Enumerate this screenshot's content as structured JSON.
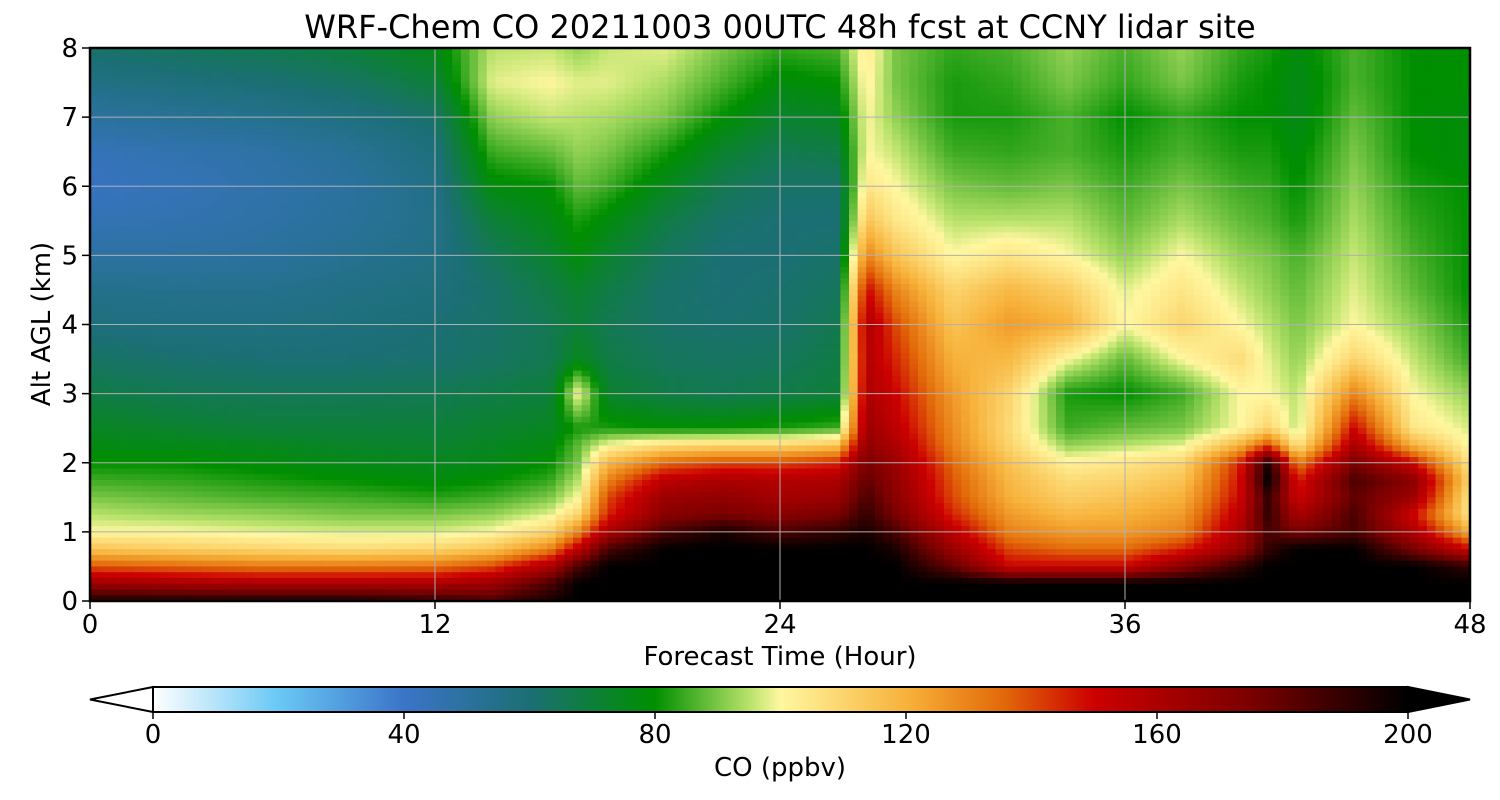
{
  "chart_data": {
    "type": "heatmap",
    "title": "WRF-Chem CO  20211003 00UTC 48h fcst at CCNY lidar site",
    "xlabel": "Forecast Time (Hour)",
    "ylabel": "Alt AGL (km)",
    "xlim": [
      0,
      48
    ],
    "ylim": [
      0,
      8
    ],
    "x_ticks": [
      "0",
      "12",
      "24",
      "36",
      "48"
    ],
    "y_ticks": [
      "0",
      "1",
      "2",
      "3",
      "4",
      "5",
      "6",
      "7",
      "8"
    ],
    "grid": true,
    "colorbar": {
      "label": "CO  (ppbv)",
      "range": [
        0,
        200
      ],
      "ticks": [
        "0",
        "40",
        "80",
        "120",
        "160",
        "200"
      ],
      "extend": "both",
      "orientation": "horizontal"
    },
    "colormap_stops": [
      {
        "value": 0,
        "color": "#ffffff"
      },
      {
        "value": 20,
        "color": "#6ac8f5"
      },
      {
        "value": 40,
        "color": "#3b74c8"
      },
      {
        "value": 60,
        "color": "#1b6f74"
      },
      {
        "value": 80,
        "color": "#008f00"
      },
      {
        "value": 95,
        "color": "#b8e26a"
      },
      {
        "value": 100,
        "color": "#fff7a0"
      },
      {
        "value": 120,
        "color": "#f7b23b"
      },
      {
        "value": 135,
        "color": "#e36c0a"
      },
      {
        "value": 150,
        "color": "#cc0000"
      },
      {
        "value": 175,
        "color": "#7a0000"
      },
      {
        "value": 200,
        "color": "#000000"
      }
    ],
    "times_h": [
      0,
      3,
      6,
      9,
      12,
      14,
      16,
      17,
      18,
      20,
      22,
      24,
      26,
      27,
      28,
      30,
      32,
      34,
      36,
      38,
      40,
      41,
      42,
      44,
      46,
      48
    ],
    "altitudes_km": [
      0,
      0.25,
      0.5,
      0.75,
      1,
      1.25,
      1.5,
      1.75,
      2,
      2.25,
      2.5,
      3,
      3.5,
      4,
      4.5,
      5,
      5.5,
      6,
      6.5,
      7,
      7.5,
      8
    ],
    "co_ppbv": [
      [
        195,
        195,
        195,
        195,
        190,
        185,
        195,
        200,
        200,
        200,
        200,
        200,
        200,
        200,
        200,
        200,
        200,
        200,
        200,
        200,
        200,
        200,
        200,
        200,
        200,
        200
      ],
      [
        165,
        162,
        160,
        160,
        160,
        165,
        185,
        200,
        200,
        200,
        200,
        200,
        200,
        200,
        200,
        200,
        200,
        200,
        200,
        200,
        200,
        200,
        200,
        200,
        200,
        200
      ],
      [
        138,
        135,
        132,
        132,
        133,
        140,
        160,
        185,
        200,
        200,
        200,
        200,
        200,
        200,
        200,
        180,
        150,
        150,
        150,
        170,
        190,
        200,
        200,
        200,
        200,
        190
      ],
      [
        115,
        112,
        110,
        108,
        110,
        115,
        130,
        155,
        185,
        200,
        200,
        200,
        200,
        200,
        195,
        165,
        140,
        135,
        135,
        145,
        165,
        190,
        200,
        200,
        175,
        150
      ],
      [
        100,
        100,
        98,
        97,
        97,
        100,
        110,
        130,
        160,
        185,
        195,
        185,
        190,
        195,
        185,
        155,
        130,
        125,
        125,
        130,
        160,
        185,
        175,
        185,
        160,
        120
      ],
      [
        95,
        93,
        92,
        90,
        90,
        92,
        98,
        110,
        145,
        170,
        175,
        170,
        175,
        190,
        175,
        145,
        125,
        118,
        120,
        125,
        155,
        190,
        160,
        185,
        150,
        105
      ],
      [
        90,
        88,
        86,
        85,
        83,
        85,
        90,
        100,
        140,
        165,
        168,
        162,
        165,
        185,
        170,
        140,
        120,
        112,
        115,
        120,
        150,
        190,
        150,
        180,
        165,
        105
      ],
      [
        85,
        84,
        82,
        80,
        78,
        80,
        84,
        95,
        130,
        155,
        160,
        158,
        160,
        180,
        168,
        138,
        118,
        108,
        110,
        115,
        148,
        200,
        145,
        185,
        170,
        110
      ],
      [
        80,
        80,
        78,
        76,
        75,
        76,
        80,
        90,
        118,
        135,
        140,
        140,
        145,
        175,
        165,
        135,
        115,
        102,
        105,
        110,
        145,
        195,
        130,
        175,
        150,
        105
      ],
      [
        77,
        76,
        75,
        73,
        72,
        74,
        77,
        88,
        100,
        108,
        110,
        110,
        115,
        168,
        160,
        130,
        110,
        92,
        95,
        98,
        120,
        140,
        105,
        160,
        120,
        100
      ],
      [
        74,
        72,
        70,
        70,
        70,
        72,
        74,
        82,
        82,
        80,
        80,
        82,
        85,
        165,
        155,
        128,
        108,
        85,
        88,
        90,
        100,
        110,
        95,
        150,
        105,
        97
      ],
      [
        68,
        66,
        65,
        65,
        66,
        68,
        70,
        100,
        72,
        68,
        66,
        68,
        70,
        160,
        150,
        125,
        110,
        82,
        80,
        85,
        100,
        100,
        95,
        130,
        100,
        92
      ],
      [
        63,
        61,
        60,
        60,
        61,
        63,
        66,
        75,
        68,
        64,
        63,
        64,
        68,
        158,
        145,
        120,
        118,
        100,
        88,
        100,
        108,
        98,
        92,
        110,
        96,
        85
      ],
      [
        58,
        57,
        57,
        58,
        60,
        62,
        66,
        70,
        66,
        62,
        61,
        62,
        66,
        160,
        140,
        115,
        125,
        120,
        100,
        110,
        100,
        95,
        90,
        100,
        92,
        82
      ],
      [
        55,
        54,
        54,
        56,
        58,
        62,
        68,
        72,
        68,
        62,
        60,
        61,
        64,
        150,
        130,
        110,
        118,
        112,
        98,
        105,
        96,
        92,
        88,
        98,
        88,
        80
      ],
      [
        49,
        49,
        50,
        53,
        56,
        65,
        72,
        78,
        72,
        64,
        60,
        60,
        62,
        130,
        115,
        100,
        105,
        100,
        92,
        100,
        92,
        90,
        86,
        96,
        86,
        80
      ],
      [
        45,
        46,
        48,
        51,
        55,
        70,
        76,
        82,
        78,
        68,
        62,
        60,
        60,
        115,
        105,
        95,
        95,
        95,
        88,
        94,
        88,
        86,
        82,
        94,
        84,
        80
      ],
      [
        42,
        44,
        47,
        50,
        56,
        78,
        80,
        88,
        85,
        75,
        66,
        62,
        62,
        105,
        100,
        90,
        88,
        90,
        85,
        90,
        85,
        84,
        80,
        92,
        82,
        80
      ],
      [
        44,
        46,
        48,
        52,
        58,
        85,
        88,
        92,
        90,
        82,
        72,
        66,
        68,
        100,
        96,
        85,
        84,
        86,
        82,
        86,
        82,
        82,
        78,
        90,
        80,
        78
      ],
      [
        50,
        52,
        54,
        57,
        62,
        92,
        96,
        95,
        94,
        90,
        80,
        72,
        74,
        100,
        92,
        82,
        82,
        86,
        80,
        84,
        80,
        80,
        76,
        88,
        80,
        78
      ],
      [
        56,
        58,
        60,
        63,
        70,
        98,
        100,
        98,
        98,
        94,
        86,
        78,
        80,
        102,
        90,
        82,
        84,
        90,
        84,
        90,
        82,
        80,
        76,
        86,
        80,
        80
      ],
      [
        62,
        64,
        66,
        70,
        76,
        95,
        96,
        92,
        96,
        98,
        90,
        84,
        86,
        104,
        90,
        84,
        86,
        92,
        86,
        92,
        84,
        82,
        78,
        86,
        80,
        80
      ]
    ]
  }
}
